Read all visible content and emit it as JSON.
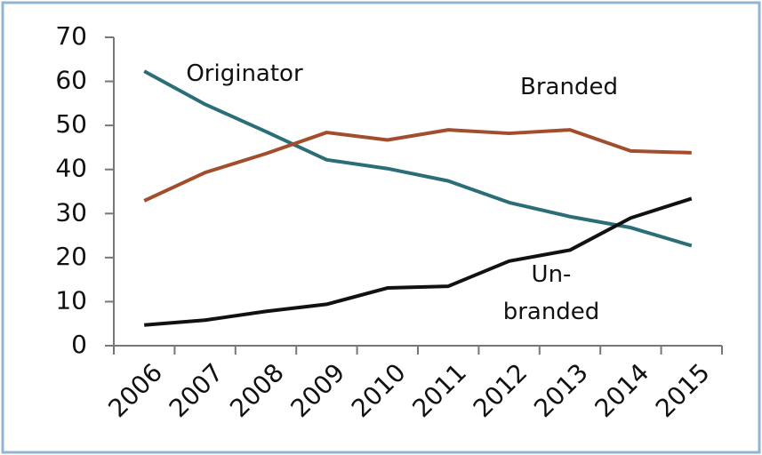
{
  "chart_data": {
    "type": "line",
    "categories": [
      "2006",
      "2007",
      "2008",
      "2009",
      "2010",
      "2011",
      "2012",
      "2013",
      "2014",
      "2015"
    ],
    "series": [
      {
        "name": "Originator",
        "color": "#2b6e78",
        "values": [
          62.3,
          54.8,
          48.6,
          42.2,
          40.2,
          37.4,
          32.5,
          29.3,
          26.8,
          22.7
        ]
      },
      {
        "name": "Branded",
        "color": "#a24e2c",
        "values": [
          32.9,
          39.3,
          43.6,
          48.4,
          46.7,
          49.0,
          48.2,
          49.0,
          44.2,
          43.8
        ]
      },
      {
        "name": "Un-branded",
        "color": "#111111",
        "values": [
          4.7,
          5.8,
          7.8,
          9.4,
          13.1,
          13.5,
          19.2,
          21.7,
          29.0,
          33.4
        ]
      }
    ],
    "ylim": [
      0,
      70
    ],
    "yticks": [
      0,
      10,
      20,
      30,
      40,
      50,
      60,
      70
    ],
    "grid": false,
    "legend": false
  }
}
